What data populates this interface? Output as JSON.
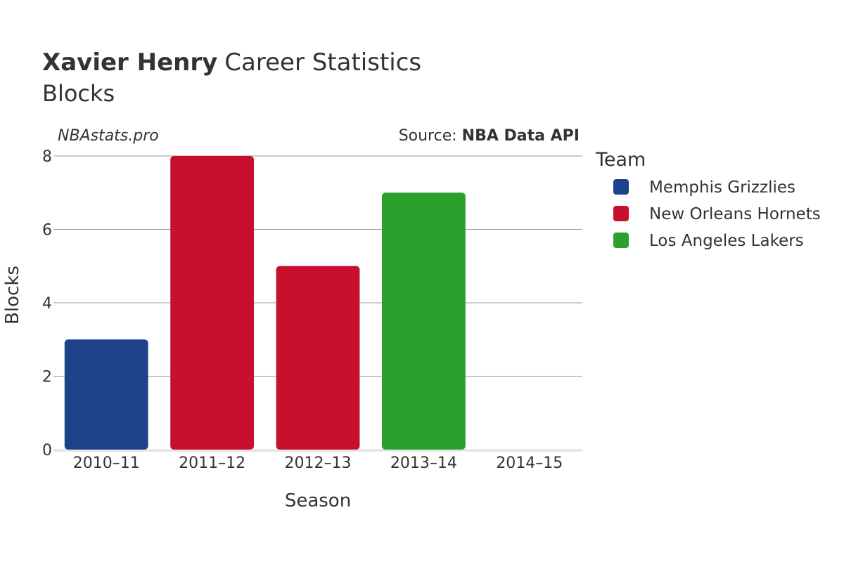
{
  "header": {
    "title_name": "Xavier Henry",
    "title_rest": "Career Statistics",
    "subtitle": "Blocks"
  },
  "watermark": "NBAstats.pro",
  "source": {
    "prefix": "Source: ",
    "name": "NBA Data API"
  },
  "legend": {
    "title": "Team",
    "items": [
      {
        "label": "Memphis Grizzlies",
        "color": "#1d428a"
      },
      {
        "label": "New Orleans Hornets",
        "color": "#c8102e"
      },
      {
        "label": "Los Angeles Lakers",
        "color": "#2ca02c"
      }
    ]
  },
  "chart_data": {
    "type": "bar",
    "categories": [
      "2010–11",
      "2011–12",
      "2012–13",
      "2013–14",
      "2014–15"
    ],
    "values": [
      3,
      8,
      5,
      7,
      0
    ],
    "teams": [
      "Memphis Grizzlies",
      "New Orleans Hornets",
      "New Orleans Hornets",
      "Los Angeles Lakers",
      "Los Angeles Lakers"
    ],
    "xlabel": "Season",
    "ylabel": "Blocks",
    "ylim": [
      0,
      8
    ],
    "yticks": [
      0,
      2,
      4,
      6,
      8
    ],
    "grid": true,
    "legend_position": "right"
  }
}
